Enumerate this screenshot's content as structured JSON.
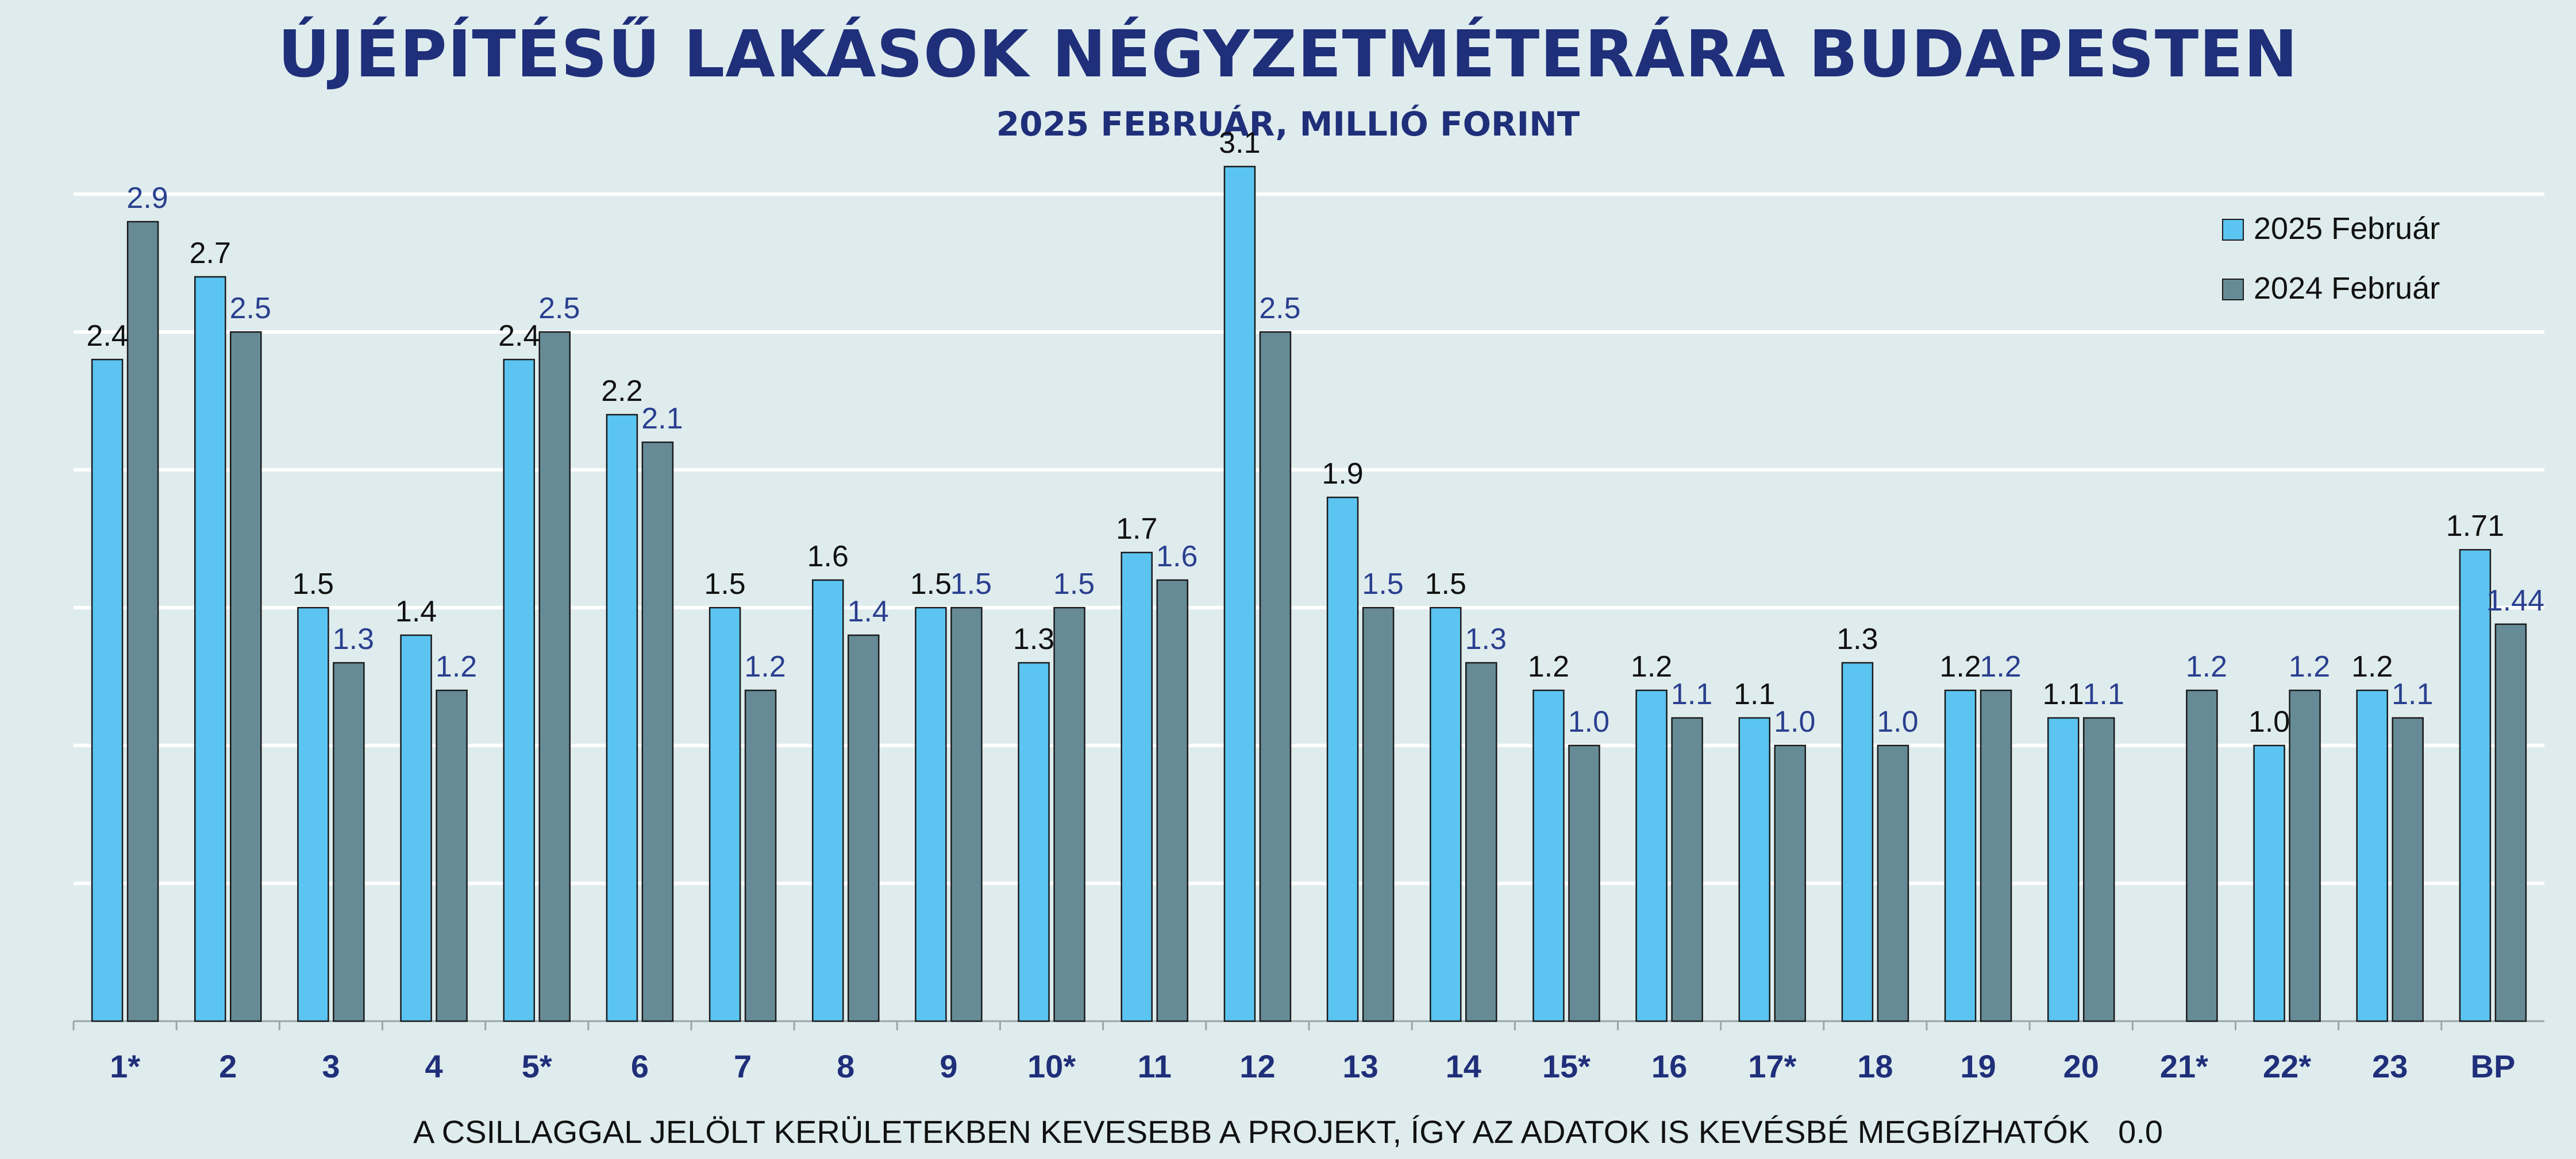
{
  "colors": {
    "background": "#dfeced",
    "series_2025": "#5bc4f1",
    "series_2024": "#668b97",
    "title": "#1f2f7a",
    "label_2025": "#111111",
    "label_2024": "#2a3f8f",
    "grid": "#ffffff"
  },
  "footnote": {
    "text": "A CSILLAGGAL JELÖLT KERÜLETEKBEN KEVESEBB A PROJEKT, ÍGY AZ ADATOK IS KEVÉSBÉ MEGBÍZHATÓK",
    "extra_value": "0.0"
  },
  "chart_data": {
    "type": "bar",
    "title": "ÚJÉPÍTÉSŰ LAKÁSOK NÉGYZETMÉTERÁRA BUDAPESTEN",
    "subtitle": "2025 FEBRUÁR, MILLIÓ FORINT",
    "xlabel": "",
    "ylabel": "",
    "ylim": [
      0,
      3.0
    ],
    "grid": true,
    "legend_position": "top-right",
    "categories": [
      "1*",
      "2",
      "3",
      "4",
      "5*",
      "6",
      "7",
      "8",
      "9",
      "10*",
      "11",
      "12",
      "13",
      "14",
      "15*",
      "16",
      "17*",
      "18",
      "19",
      "20",
      "21*",
      "22*",
      "23",
      "BP"
    ],
    "series": [
      {
        "name": "2025 Február",
        "values": [
          2.4,
          2.7,
          1.5,
          1.4,
          2.4,
          2.2,
          1.5,
          1.6,
          1.5,
          1.3,
          1.7,
          3.1,
          1.9,
          1.5,
          1.2,
          1.2,
          1.1,
          1.3,
          1.2,
          1.1,
          0.0,
          1.0,
          1.2,
          1.71
        ],
        "labels": [
          "2.4",
          "2.7",
          "1.5",
          "1.4",
          "2.4",
          "2.2",
          "1.5",
          "1.6",
          "1.5",
          "1.3",
          "1.7",
          "3.1",
          "1.9",
          "1.5",
          "1.2",
          "1.2",
          "1.1",
          "1.3",
          "1.2",
          "1.1",
          "",
          "1.0",
          "1.2",
          "1.71"
        ]
      },
      {
        "name": "2024 Február",
        "values": [
          2.9,
          2.5,
          1.3,
          1.2,
          2.5,
          2.1,
          1.2,
          1.4,
          1.5,
          1.5,
          1.6,
          2.5,
          1.5,
          1.3,
          1.0,
          1.1,
          1.0,
          1.0,
          1.2,
          1.1,
          1.2,
          1.2,
          1.1,
          1.44
        ],
        "labels": [
          "2.9",
          "2.5",
          "1.3",
          "1.2",
          "2.5",
          "2.1",
          "1.2",
          "1.4",
          "1.5",
          "1.5",
          "1.6",
          "2.5",
          "1.5",
          "1.3",
          "1.0",
          "1.1",
          "1.0",
          "1.0",
          "1.2",
          "1.1",
          "1.2",
          "1.2",
          "1.1",
          "1.44"
        ]
      }
    ]
  }
}
